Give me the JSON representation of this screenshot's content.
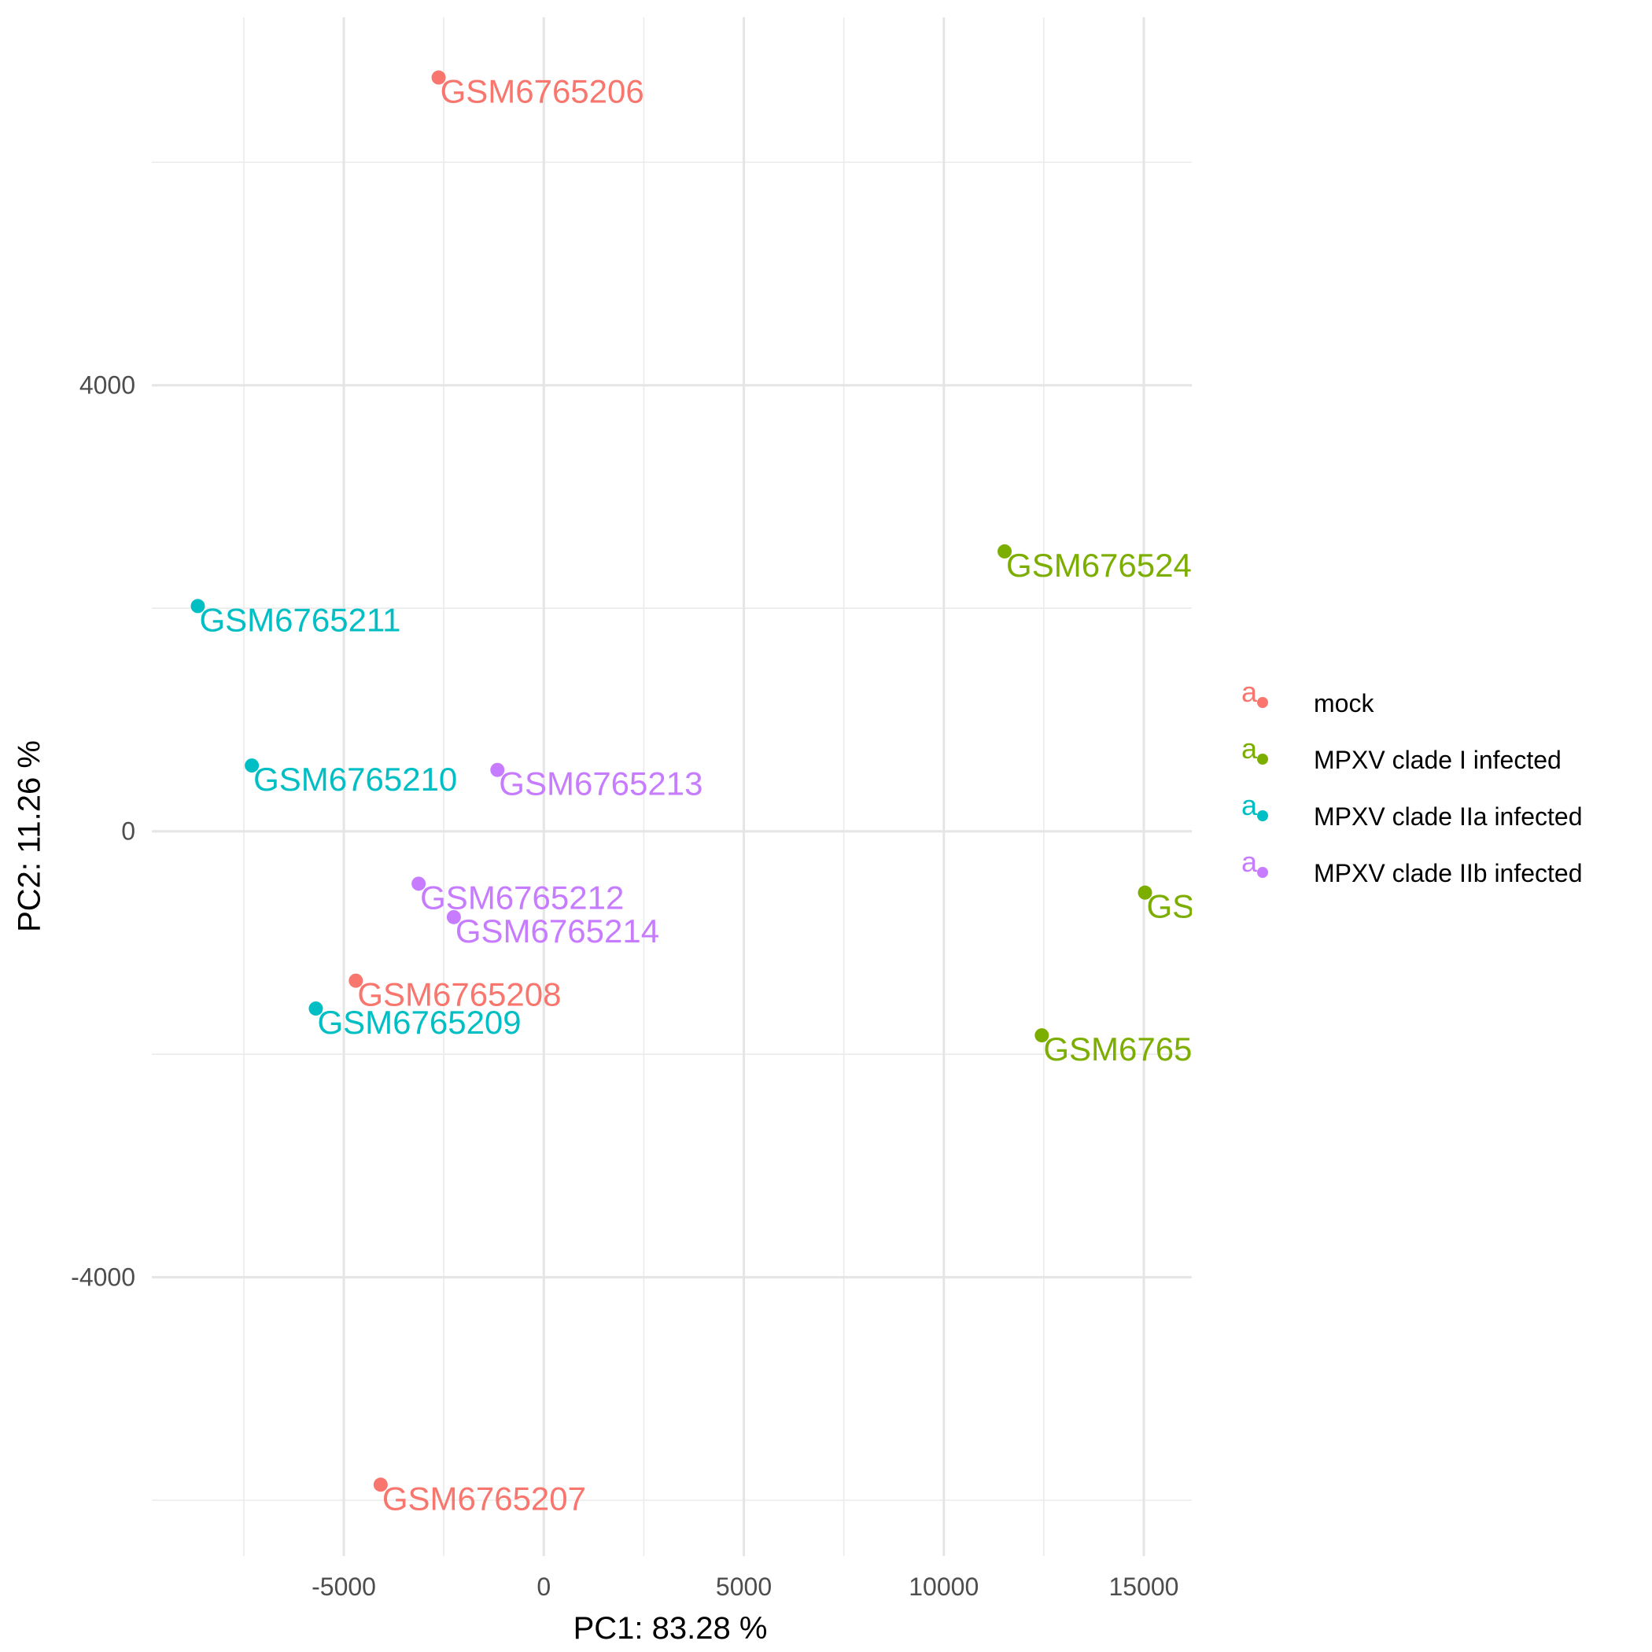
{
  "chart_data": {
    "type": "scatter",
    "title": "",
    "xlabel": "PC1: 83.28 %",
    "ylabel": "PC2: 11.26 %",
    "xlim": [
      -9800,
      16200
    ],
    "ylim": [
      -6500,
      7300
    ],
    "x_ticks": [
      -5000,
      0,
      5000,
      10000,
      15000
    ],
    "x_tick_labels": [
      "-5000",
      "0",
      "5000",
      "10000",
      "15000"
    ],
    "y_ticks": [
      -4000,
      0,
      4000
    ],
    "y_tick_labels": [
      "-4000",
      "0",
      "4000"
    ],
    "grid": true,
    "legend_position": "right",
    "series": [
      {
        "name": "mock",
        "color": "#F8766D",
        "points": [
          {
            "x": -2630,
            "y": 6760,
            "label": "GSM6765206"
          },
          {
            "x": -4080,
            "y": -5860,
            "label": "GSM6765207"
          },
          {
            "x": -4700,
            "y": -1340,
            "label": "GSM6765208"
          }
        ]
      },
      {
        "name": "MPXV clade I infected",
        "color": "#7CAE00",
        "points": [
          {
            "x": 11520,
            "y": 2510,
            "label": "GSM676524"
          },
          {
            "x": 15030,
            "y": -550,
            "label": "GS"
          },
          {
            "x": 12450,
            "y": -1830,
            "label": "GSM6765"
          }
        ]
      },
      {
        "name": "MPXV clade IIa infected",
        "color": "#00BFC4",
        "points": [
          {
            "x": -8650,
            "y": 2020,
            "label": "GSM6765211"
          },
          {
            "x": -7300,
            "y": 590,
            "label": "GSM6765210"
          },
          {
            "x": -5700,
            "y": -1590,
            "label": "GSM6765209"
          }
        ]
      },
      {
        "name": "MPXV clade IIb infected",
        "color": "#C77CFF",
        "points": [
          {
            "x": -1160,
            "y": 550,
            "label": "GSM6765213"
          },
          {
            "x": -3130,
            "y": -470,
            "label": "GSM6765212"
          },
          {
            "x": -2250,
            "y": -770,
            "label": "GSM6765214"
          }
        ]
      }
    ]
  },
  "legend": {
    "key_glyph": "a"
  }
}
